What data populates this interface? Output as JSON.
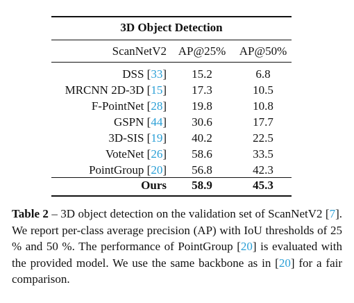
{
  "table": {
    "title": "3D Object Detection",
    "header": {
      "dataset": "ScanNetV2",
      "ap25": "AP@25%",
      "ap50": "AP@50%"
    },
    "rows": [
      {
        "method": "DSS",
        "ref": "33",
        "ap25": "15.2",
        "ap50": "6.8"
      },
      {
        "method": "MRCNN 2D-3D",
        "ref": "15",
        "ap25": "17.3",
        "ap50": "10.5"
      },
      {
        "method": "F-PointNet",
        "ref": "28",
        "ap25": "19.8",
        "ap50": "10.8"
      },
      {
        "method": "GSPN",
        "ref": "44",
        "ap25": "30.6",
        "ap50": "17.7"
      },
      {
        "method": "3D-SIS",
        "ref": "19",
        "ap25": "40.2",
        "ap50": "22.5"
      },
      {
        "method": "VoteNet",
        "ref": "26",
        "ap25": "58.6",
        "ap50": "33.5"
      },
      {
        "method": "PointGroup",
        "ref": "20",
        "ap25": "56.8",
        "ap50": "42.3"
      }
    ],
    "ours": {
      "method": "Ours",
      "ap25": "58.9",
      "ap50": "45.3"
    }
  },
  "caption": {
    "label": "Table 2",
    "dash": " – ",
    "part1": "3D object detection on the validation set of ScanNetV2 [",
    "ref1": "7",
    "part2": "]. We report per-class average precision (AP) with IoU thresholds of 25 % and 50 %. The performance of PointGroup [",
    "ref2": "20",
    "part3": "] is evaluated with the provided model. We use the same backbone as in [",
    "ref3": "20",
    "part4": "] for a fair comparison."
  },
  "colors": {
    "reference_link": "#2a9fd6",
    "text": "#111111"
  }
}
